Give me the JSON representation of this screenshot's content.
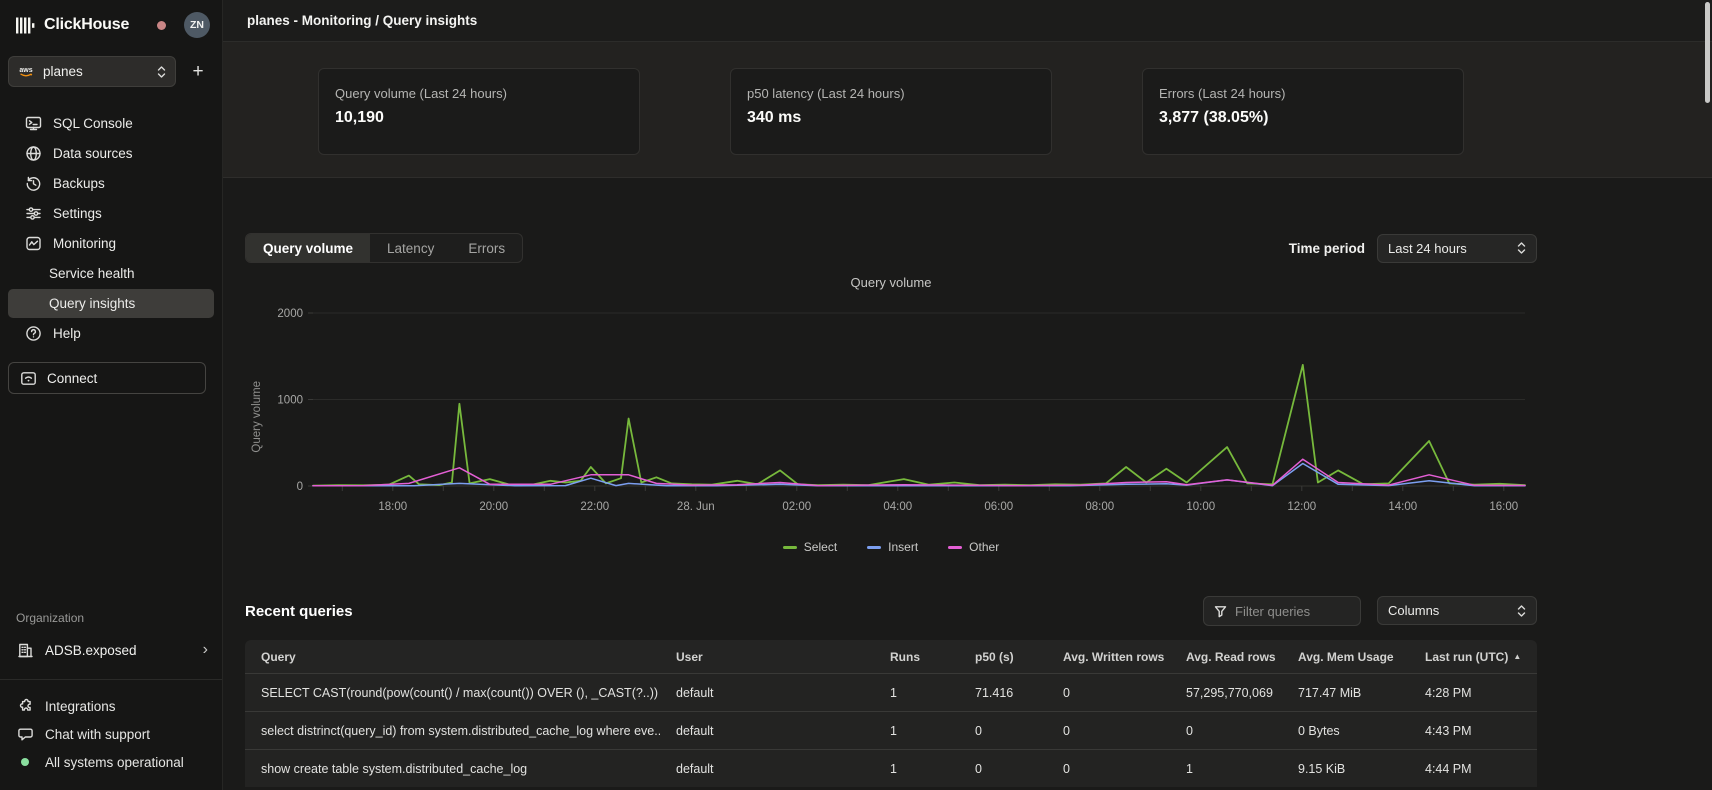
{
  "sidebar": {
    "logo_text": "ClickHouse",
    "status_dot_color": "#c98585",
    "avatar_initials": "ZN",
    "service_selector": {
      "value": "planes",
      "cloud": "aws"
    },
    "nav": [
      {
        "label": "SQL Console"
      },
      {
        "label": "Data sources"
      },
      {
        "label": "Backups"
      },
      {
        "label": "Settings"
      },
      {
        "label": "Monitoring"
      },
      {
        "label": "Service health"
      },
      {
        "label": "Query insights"
      },
      {
        "label": "Help"
      }
    ],
    "connect_label": "Connect",
    "organization": {
      "section_label": "Organization",
      "name": "ADSB.exposed"
    },
    "footer": {
      "integrations": "Integrations",
      "chat": "Chat with support",
      "status": "All systems operational",
      "status_dot_color": "#8ade9e"
    }
  },
  "header": {
    "title": "planes - Monitoring / Query insights"
  },
  "stats": [
    {
      "label": "Query volume (Last 24 hours)",
      "value": "10,190"
    },
    {
      "label": "p50 latency (Last 24 hours)",
      "value": "340 ms"
    },
    {
      "label": "Errors (Last 24 hours)",
      "value": "3,877 (38.05%)"
    }
  ],
  "tabs": {
    "items": [
      "Query volume",
      "Latency",
      "Errors"
    ],
    "active": "Query volume"
  },
  "time_period": {
    "label": "Time period",
    "value": "Last 24 hours"
  },
  "chart_data": {
    "type": "line",
    "title": "Query volume",
    "ylabel": "Query volume",
    "ylim": [
      0,
      2000
    ],
    "y_ticks": [
      0,
      1000,
      2000
    ],
    "x_range": [
      0,
      24
    ],
    "x_labels": [
      "18:00",
      "20:00",
      "22:00",
      "28. Jun",
      "02:00",
      "04:00",
      "06:00",
      "08:00",
      "10:00",
      "12:00",
      "14:00",
      "16:00"
    ],
    "x_label_start": 1.58,
    "x_label_step": 2,
    "grid": "horizontal-only",
    "legend_position": "bottom",
    "series": [
      {
        "name": "Select",
        "color": "#77b93c",
        "points": [
          [
            0,
            5
          ],
          [
            0.5,
            10
          ],
          [
            1,
            8
          ],
          [
            1.5,
            15
          ],
          [
            1.9,
            120
          ],
          [
            2.1,
            20
          ],
          [
            2.5,
            10
          ],
          [
            2.75,
            40
          ],
          [
            2.9,
            950
          ],
          [
            3.1,
            30
          ],
          [
            3.5,
            80
          ],
          [
            3.9,
            15
          ],
          [
            4.3,
            10
          ],
          [
            4.7,
            60
          ],
          [
            5.0,
            40
          ],
          [
            5.3,
            60
          ],
          [
            5.5,
            220
          ],
          [
            5.8,
            30
          ],
          [
            6.1,
            90
          ],
          [
            6.25,
            780
          ],
          [
            6.5,
            40
          ],
          [
            6.8,
            100
          ],
          [
            7.1,
            30
          ],
          [
            7.5,
            20
          ],
          [
            7.9,
            15
          ],
          [
            8.4,
            60
          ],
          [
            8.8,
            20
          ],
          [
            9.25,
            180
          ],
          [
            9.6,
            20
          ],
          [
            10,
            10
          ],
          [
            10.5,
            15
          ],
          [
            11,
            10
          ],
          [
            11.7,
            80
          ],
          [
            12.2,
            15
          ],
          [
            12.7,
            40
          ],
          [
            13.2,
            10
          ],
          [
            13.7,
            15
          ],
          [
            14.2,
            10
          ],
          [
            14.7,
            20
          ],
          [
            15.2,
            15
          ],
          [
            15.7,
            30
          ],
          [
            16.1,
            220
          ],
          [
            16.5,
            40
          ],
          [
            16.9,
            200
          ],
          [
            17.3,
            40
          ],
          [
            18.1,
            450
          ],
          [
            18.5,
            30
          ],
          [
            19,
            20
          ],
          [
            19.6,
            1400
          ],
          [
            19.9,
            40
          ],
          [
            20.3,
            180
          ],
          [
            20.8,
            20
          ],
          [
            21.3,
            30
          ],
          [
            22.1,
            520
          ],
          [
            22.5,
            30
          ],
          [
            23,
            15
          ],
          [
            23.5,
            25
          ],
          [
            24,
            10
          ]
        ]
      },
      {
        "name": "Insert",
        "color": "#7c9ff0",
        "points": [
          [
            0,
            3
          ],
          [
            1,
            3
          ],
          [
            2,
            4
          ],
          [
            2.9,
            30
          ],
          [
            4,
            3
          ],
          [
            5,
            5
          ],
          [
            5.5,
            90
          ],
          [
            6,
            5
          ],
          [
            6.25,
            30
          ],
          [
            7,
            4
          ],
          [
            8,
            3
          ],
          [
            9.25,
            20
          ],
          [
            10,
            3
          ],
          [
            11,
            3
          ],
          [
            12,
            4
          ],
          [
            13,
            3
          ],
          [
            14,
            3
          ],
          [
            15,
            3
          ],
          [
            16.1,
            20
          ],
          [
            16.9,
            25
          ],
          [
            17.3,
            10
          ],
          [
            18.1,
            70
          ],
          [
            19,
            4
          ],
          [
            19.6,
            260
          ],
          [
            20.3,
            20
          ],
          [
            21.3,
            5
          ],
          [
            22.1,
            60
          ],
          [
            23,
            4
          ],
          [
            24,
            3
          ]
        ]
      },
      {
        "name": "Other",
        "color": "#e45fd5",
        "points": [
          [
            0,
            4
          ],
          [
            1,
            5
          ],
          [
            1.9,
            30
          ],
          [
            2.9,
            210
          ],
          [
            3.5,
            20
          ],
          [
            4.7,
            20
          ],
          [
            5.5,
            130
          ],
          [
            6.25,
            130
          ],
          [
            6.8,
            30
          ],
          [
            7.5,
            10
          ],
          [
            8.4,
            15
          ],
          [
            9.25,
            40
          ],
          [
            10,
            5
          ],
          [
            11.7,
            15
          ],
          [
            12.7,
            10
          ],
          [
            14,
            5
          ],
          [
            15.2,
            10
          ],
          [
            16.1,
            40
          ],
          [
            16.9,
            50
          ],
          [
            17.3,
            15
          ],
          [
            18.1,
            70
          ],
          [
            19,
            8
          ],
          [
            19.6,
            310
          ],
          [
            20.3,
            40
          ],
          [
            21.3,
            10
          ],
          [
            22.1,
            130
          ],
          [
            23,
            8
          ],
          [
            24,
            6
          ]
        ]
      }
    ]
  },
  "recent_queries": {
    "title": "Recent queries",
    "filter_placeholder": "Filter queries",
    "columns_button": "Columns",
    "table": {
      "headers": [
        "Query",
        "User",
        "Runs",
        "p50 (s)",
        "Avg. Written rows",
        "Avg. Read rows",
        "Avg. Mem Usage",
        "Last run (UTC)"
      ],
      "sort_column": "Last run (UTC)",
      "sort_direction": "asc",
      "rows": [
        [
          "SELECT CAST(round(pow(count() / max(count()) OVER (), _CAST(?..)) * ...",
          "default",
          "1",
          "71.416",
          "0",
          "57,295,770,069",
          "717.47 MiB",
          "4:28 PM"
        ],
        [
          "select distrinct(query_id) from system.distributed_cache_log where eve...",
          "default",
          "1",
          "0",
          "0",
          "0",
          "0 Bytes",
          "4:43 PM"
        ],
        [
          "show create table system.distributed_cache_log",
          "default",
          "1",
          "0",
          "0",
          "1",
          "9.15 KiB",
          "4:44 PM"
        ]
      ]
    }
  }
}
